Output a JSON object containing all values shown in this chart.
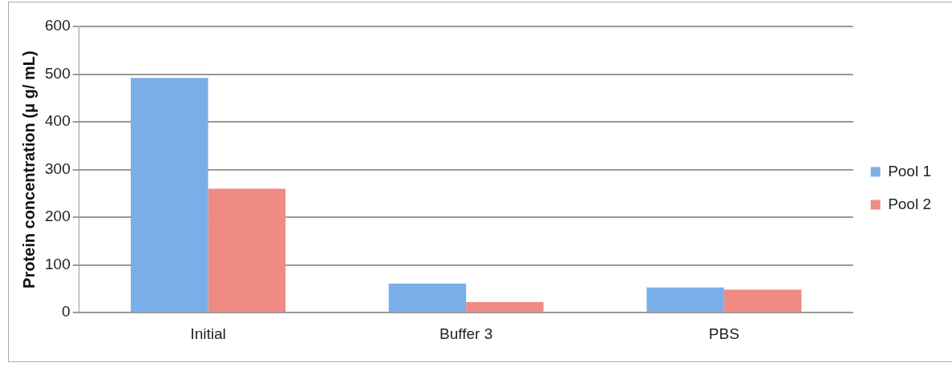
{
  "chart_data": {
    "type": "bar",
    "ylabel": "Protein concentration (μ g/ mL)",
    "categories": [
      "Initial",
      "Buffer 3",
      "PBS"
    ],
    "series": [
      {
        "name": "Pool 1",
        "color": "#7aaee8",
        "values": [
          492,
          61,
          53
        ]
      },
      {
        "name": "Pool 2",
        "color": "#f08a84",
        "values": [
          260,
          22,
          48
        ]
      }
    ],
    "ylim": [
      0,
      600
    ],
    "yticks": [
      0,
      100,
      200,
      300,
      400,
      500,
      600
    ],
    "grid": "y",
    "legend": "right"
  }
}
